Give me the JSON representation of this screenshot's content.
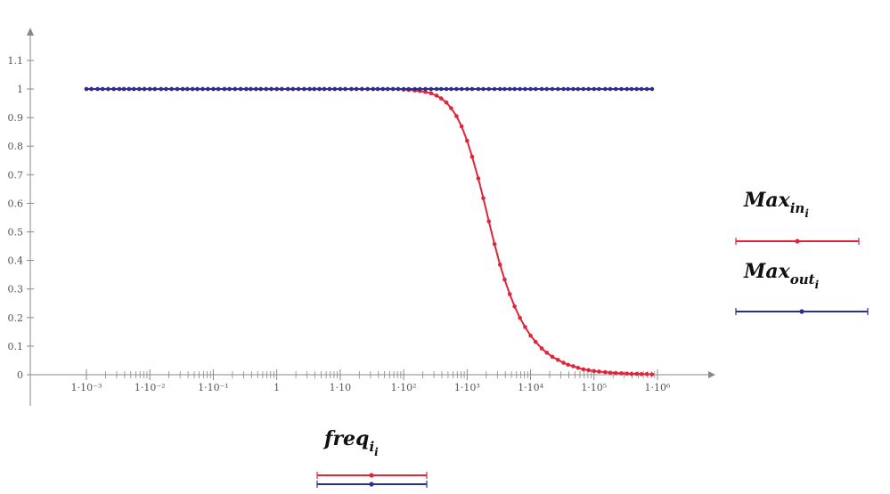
{
  "chart_data": {
    "type": "line",
    "x_scale": "log",
    "xlim": [
      0.001,
      1000000
    ],
    "ylim": [
      0,
      1.15
    ],
    "grid": false,
    "x_tick_labels": [
      "1·10⁻³",
      "1·10⁻²",
      "1·10⁻¹",
      "1",
      "1·10",
      "1·10²",
      "1·10³",
      "1·10⁴",
      "1·10⁵",
      "1·10⁶"
    ],
    "x_tick_values": [
      0.001,
      0.01,
      0.1,
      1,
      10,
      100,
      1000,
      10000,
      100000,
      1000000
    ],
    "y_tick_labels": [
      "0",
      "0.1",
      "0.2",
      "0.3",
      "0.4",
      "0.5",
      "0.6",
      "0.7",
      "0.8",
      "0.9",
      "1",
      "1.1"
    ],
    "y_tick_values": [
      0,
      0.1,
      0.2,
      0.3,
      0.4,
      0.5,
      0.6,
      0.7,
      0.8,
      0.9,
      1,
      1.1
    ],
    "xlabel": {
      "base": "freq",
      "sub1": "i",
      "sub2": "i"
    },
    "ylabels": [
      {
        "base": "Max",
        "sub1": "in",
        "sub2": "i",
        "color": "#e0253a"
      },
      {
        "base": "Max",
        "sub1": "out",
        "sub2": "i",
        "color": "#2b2f8f"
      }
    ],
    "series": [
      {
        "color": "#e0253a",
        "x": [
          0.001,
          0.0012,
          0.0015,
          0.0018,
          0.0022,
          0.0027,
          0.0033,
          0.0039,
          0.0047,
          0.0056,
          0.0068,
          0.0082,
          0.01,
          0.012,
          0.015,
          0.018,
          0.022,
          0.027,
          0.033,
          0.039,
          0.047,
          0.056,
          0.068,
          0.082,
          0.1,
          0.12,
          0.15,
          0.18,
          0.22,
          0.27,
          0.33,
          0.39,
          0.47,
          0.56,
          0.68,
          0.82,
          1,
          1.2,
          1.5,
          1.8,
          2.2,
          2.7,
          3.3,
          3.9,
          4.7,
          5.6,
          6.8,
          8.2,
          10,
          12,
          15,
          18,
          22,
          27,
          33,
          39,
          47,
          56,
          68,
          82,
          100,
          120,
          150,
          180,
          220,
          270,
          330,
          390,
          470,
          560,
          680,
          820,
          1000,
          1200,
          1500,
          1800,
          2200,
          2700,
          3300,
          3900,
          4700,
          5600,
          6800,
          8200,
          10000,
          12000,
          15000,
          18000,
          22000,
          27000,
          33000,
          39000,
          47000,
          56000,
          68000,
          82000,
          100000,
          120000,
          150000,
          180000,
          220000,
          270000,
          330000,
          390000,
          470000,
          560000,
          680000,
          820000
        ],
        "y": [
          1,
          1,
          1,
          1,
          1,
          1,
          1,
          1,
          1,
          1,
          1,
          1,
          1,
          1,
          1,
          1,
          1,
          1,
          1,
          1,
          1,
          1,
          1,
          1,
          1,
          1,
          1,
          1,
          1,
          1,
          1,
          1,
          1,
          1,
          1,
          1,
          1,
          1,
          1,
          1,
          1,
          1,
          1,
          1,
          1,
          1,
          1,
          1,
          1,
          1,
          1,
          1,
          1,
          1,
          1,
          1,
          1,
          1,
          1,
          1,
          0.998,
          0.997,
          0.995,
          0.993,
          0.99,
          0.985,
          0.977,
          0.967,
          0.953,
          0.933,
          0.905,
          0.869,
          0.819,
          0.763,
          0.687,
          0.618,
          0.537,
          0.457,
          0.385,
          0.333,
          0.282,
          0.239,
          0.199,
          0.167,
          0.137,
          0.115,
          0.092,
          0.077,
          0.063,
          0.052,
          0.042,
          0.035,
          0.03,
          0.024,
          0.019,
          0.016,
          0.013,
          0.011,
          0.009,
          0.007,
          0.006,
          0.005,
          0.004,
          0.003,
          0.003,
          0.002,
          0.002,
          0.001
        ]
      },
      {
        "color": "#2b2f8f",
        "x_same_as_first": true,
        "y_constant": 1
      }
    ]
  }
}
